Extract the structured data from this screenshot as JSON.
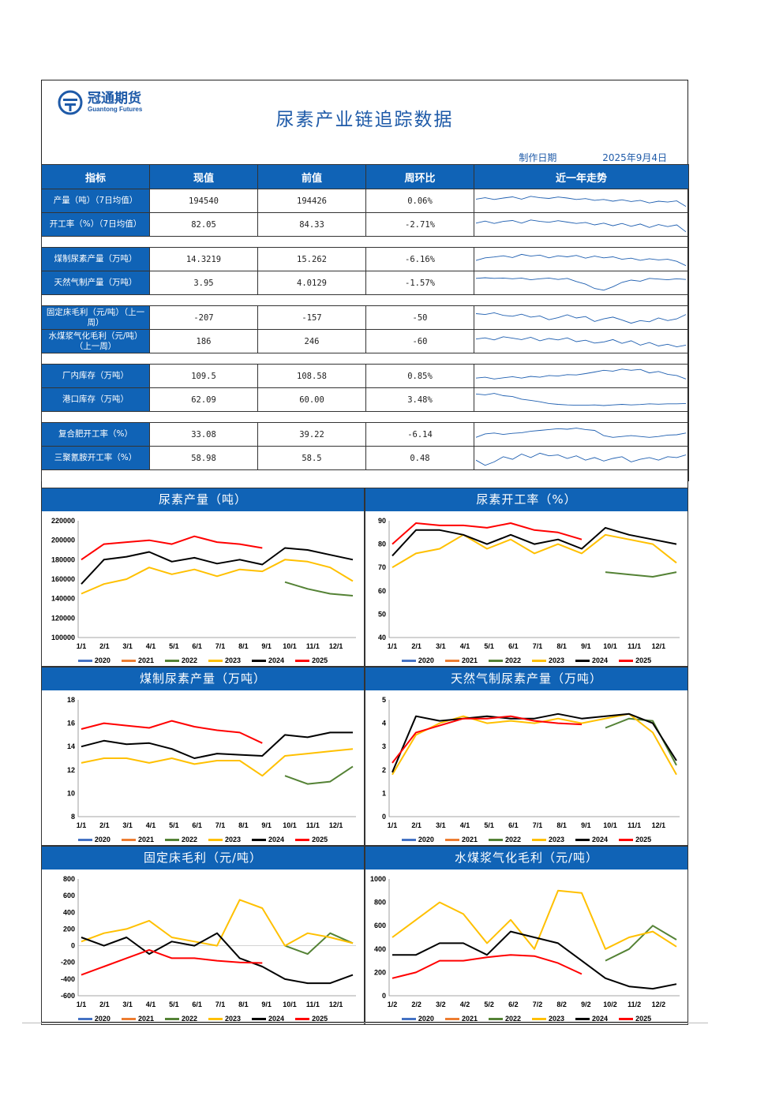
{
  "company": {
    "name_cn": "冠通期货",
    "name_en": "Guantong Futures"
  },
  "title": "尿素产业链追踪数据",
  "date_label": "制作日期",
  "date_value": "2025年9月4日",
  "table": {
    "headers": [
      "指标",
      "现值",
      "前值",
      "周环比",
      "近一年走势"
    ],
    "groups": [
      [
        {
          "label": "产量（吨）（7日均值）",
          "current": "194540",
          "previous": "194426",
          "wow": "0.06%",
          "trend": [
            0.62,
            0.7,
            0.6,
            0.68,
            0.75,
            0.62,
            0.78,
            0.7,
            0.66,
            0.74,
            0.68,
            0.6,
            0.65,
            0.55,
            0.6,
            0.5,
            0.58,
            0.48,
            0.55,
            0.4,
            0.5,
            0.45,
            0.52,
            0.2
          ]
        },
        {
          "label": "开工率（%）（7日均值）",
          "current": "82.05",
          "previous": "84.33",
          "wow": "-2.71%",
          "trend": [
            0.6,
            0.72,
            0.58,
            0.7,
            0.75,
            0.6,
            0.78,
            0.7,
            0.65,
            0.74,
            0.66,
            0.58,
            0.64,
            0.5,
            0.6,
            0.45,
            0.58,
            0.42,
            0.55,
            0.35,
            0.52,
            0.4,
            0.5,
            0.1
          ]
        }
      ],
      [
        {
          "label": "煤制尿素产量（万吨）",
          "current": "14.3219",
          "previous": "15.262",
          "wow": "-6.16%",
          "trend": [
            0.45,
            0.6,
            0.65,
            0.72,
            0.62,
            0.8,
            0.7,
            0.76,
            0.6,
            0.72,
            0.66,
            0.74,
            0.58,
            0.7,
            0.6,
            0.66,
            0.52,
            0.58,
            0.46,
            0.55,
            0.48,
            0.52,
            0.4,
            0.15
          ]
        },
        {
          "label": "天然气制产量（万吨）",
          "current": "3.95",
          "previous": "4.0129",
          "wow": "-1.57%",
          "trend": [
            0.78,
            0.82,
            0.78,
            0.8,
            0.76,
            0.8,
            0.7,
            0.76,
            0.8,
            0.72,
            0.78,
            0.6,
            0.45,
            0.2,
            0.1,
            0.3,
            0.55,
            0.68,
            0.62,
            0.78,
            0.74,
            0.7,
            0.76,
            0.72
          ]
        }
      ],
      [
        {
          "label": "固定床毛利（元/吨）（上一周）",
          "current": "-207",
          "previous": "-157",
          "wow": "-50",
          "trend": [
            0.75,
            0.7,
            0.8,
            0.65,
            0.6,
            0.72,
            0.55,
            0.62,
            0.4,
            0.52,
            0.68,
            0.5,
            0.58,
            0.3,
            0.45,
            0.55,
            0.38,
            0.2,
            0.35,
            0.28,
            0.5,
            0.35,
            0.45,
            0.7
          ]
        },
        {
          "label": "水煤浆气化毛利（元/吨）（上一周）",
          "current": "186",
          "previous": "246",
          "wow": "-60",
          "trend": [
            0.65,
            0.72,
            0.6,
            0.78,
            0.7,
            0.62,
            0.75,
            0.55,
            0.68,
            0.6,
            0.72,
            0.5,
            0.58,
            0.42,
            0.48,
            0.62,
            0.4,
            0.55,
            0.3,
            0.45,
            0.25,
            0.35,
            0.2,
            0.3
          ]
        }
      ],
      [
        {
          "label": "厂内库存（万吨）",
          "current": "109.5",
          "previous": "108.58",
          "wow": "0.85%",
          "trend": [
            0.4,
            0.45,
            0.35,
            0.42,
            0.48,
            0.4,
            0.5,
            0.45,
            0.55,
            0.52,
            0.6,
            0.58,
            0.66,
            0.75,
            0.85,
            0.8,
            0.92,
            0.85,
            0.9,
            0.7,
            0.78,
            0.62,
            0.55,
            0.35
          ]
        },
        {
          "label": "港口库存（万吨）",
          "current": "62.09",
          "previous": "60.00",
          "wow": "3.48%",
          "trend": [
            0.85,
            0.8,
            0.88,
            0.75,
            0.7,
            0.55,
            0.48,
            0.4,
            0.3,
            0.25,
            0.22,
            0.2,
            0.2,
            0.22,
            0.18,
            0.22,
            0.25,
            0.22,
            0.24,
            0.28,
            0.26,
            0.28,
            0.28,
            0.3
          ]
        }
      ],
      [
        {
          "label": "复合肥开工率（%）",
          "current": "33.08",
          "previous": "39.22",
          "wow": "-6.14",
          "trend": [
            0.35,
            0.55,
            0.6,
            0.52,
            0.58,
            0.62,
            0.7,
            0.75,
            0.8,
            0.85,
            0.82,
            0.88,
            0.8,
            0.75,
            0.45,
            0.35,
            0.4,
            0.45,
            0.4,
            0.35,
            0.4,
            0.48,
            0.5,
            0.6
          ]
        },
        {
          "label": "三聚氰胺开工率（%）",
          "current": "58.98",
          "previous": "58.5",
          "wow": "0.48",
          "trend": [
            0.4,
            0.1,
            0.3,
            0.6,
            0.45,
            0.75,
            0.55,
            0.8,
            0.65,
            0.7,
            0.5,
            0.65,
            0.4,
            0.55,
            0.35,
            0.5,
            0.6,
            0.3,
            0.45,
            0.55,
            0.4,
            0.6,
            0.55,
            0.7
          ]
        }
      ]
    ]
  },
  "legend_years": [
    "2020",
    "2021",
    "2022",
    "2023",
    "2024",
    "2025"
  ],
  "series_colors": {
    "2020": "#4472c4",
    "2021": "#ed7d31",
    "2022": "#548235",
    "2023": "#ffc000",
    "2024": "#000000",
    "2025": "#ff0000"
  },
  "chart_data": [
    {
      "type": "line",
      "title": "尿素产量（吨）",
      "x_ticks": [
        "1/1",
        "2/1",
        "3/1",
        "4/1",
        "5/1",
        "6/1",
        "7/1",
        "8/1",
        "9/1",
        "10/1",
        "11/1",
        "12/1"
      ],
      "ylim": [
        100000,
        220000
      ],
      "y_ticks": [
        100000,
        120000,
        140000,
        160000,
        180000,
        200000,
        220000
      ],
      "series": [
        {
          "name": "2022",
          "values": [
            null,
            null,
            null,
            null,
            null,
            null,
            null,
            null,
            null,
            157000,
            150000,
            145000,
            143000
          ]
        },
        {
          "name": "2023",
          "values": [
            145000,
            155000,
            160000,
            172000,
            165000,
            170000,
            163000,
            170000,
            168000,
            180000,
            178000,
            172000,
            158000
          ]
        },
        {
          "name": "2024",
          "values": [
            155000,
            180000,
            183000,
            188000,
            178000,
            182000,
            176000,
            180000,
            175000,
            192000,
            190000,
            185000,
            180000
          ]
        },
        {
          "name": "2025",
          "values": [
            180000,
            196000,
            198000,
            200000,
            196000,
            204000,
            198000,
            196000,
            192000,
            null,
            null,
            null,
            null
          ]
        }
      ]
    },
    {
      "type": "line",
      "title": "尿素开工率（%）",
      "x_ticks": [
        "1/1",
        "2/1",
        "3/1",
        "4/1",
        "5/1",
        "6/1",
        "7/1",
        "8/1",
        "9/1",
        "10/1",
        "11/1",
        "12/1"
      ],
      "ylim": [
        40,
        90
      ],
      "y_ticks": [
        40,
        50,
        60,
        70,
        80,
        90
      ],
      "series": [
        {
          "name": "2022",
          "values": [
            null,
            null,
            null,
            null,
            null,
            null,
            null,
            null,
            null,
            68,
            67,
            66,
            68
          ]
        },
        {
          "name": "2023",
          "values": [
            70,
            76,
            78,
            84,
            78,
            82,
            76,
            80,
            76,
            84,
            82,
            80,
            72
          ]
        },
        {
          "name": "2024",
          "values": [
            75,
            86,
            86,
            84,
            80,
            84,
            80,
            82,
            78,
            87,
            84,
            82,
            80
          ]
        },
        {
          "name": "2025",
          "values": [
            80,
            89,
            88,
            88,
            87,
            89,
            86,
            85,
            82,
            null,
            null,
            null,
            null
          ]
        }
      ]
    },
    {
      "type": "line",
      "title": "煤制尿素产量（万吨）",
      "x_ticks": [
        "1/1",
        "2/1",
        "3/1",
        "4/1",
        "5/1",
        "6/1",
        "7/1",
        "8/1",
        "9/1",
        "10/1",
        "11/1",
        "12/1"
      ],
      "ylim": [
        8,
        18
      ],
      "y_ticks": [
        8,
        10,
        12,
        14,
        16,
        18
      ],
      "series": [
        {
          "name": "2022",
          "values": [
            null,
            null,
            null,
            null,
            null,
            null,
            null,
            null,
            null,
            11.5,
            10.8,
            11.0,
            12.3
          ]
        },
        {
          "name": "2023",
          "values": [
            12.6,
            13.0,
            13.0,
            12.6,
            13.0,
            12.5,
            12.8,
            12.8,
            11.5,
            13.2,
            13.4,
            13.6,
            13.8
          ]
        },
        {
          "name": "2024",
          "values": [
            14.0,
            14.5,
            14.2,
            14.3,
            13.8,
            13.0,
            13.4,
            13.3,
            13.2,
            15.0,
            14.8,
            15.2,
            15.2
          ]
        },
        {
          "name": "2025",
          "values": [
            15.5,
            16.0,
            15.8,
            15.6,
            16.2,
            15.7,
            15.4,
            15.2,
            14.3,
            null,
            null,
            null,
            null
          ]
        }
      ]
    },
    {
      "type": "line",
      "title": "天然气制尿素产量（万吨）",
      "x_ticks": [
        "1/1",
        "2/1",
        "3/1",
        "4/1",
        "5/1",
        "6/1",
        "7/1",
        "8/1",
        "9/1",
        "10/1",
        "11/1",
        "12/1"
      ],
      "ylim": [
        0,
        5
      ],
      "y_ticks": [
        0,
        1,
        2,
        3,
        4,
        5
      ],
      "series": [
        {
          "name": "2022",
          "values": [
            null,
            null,
            null,
            null,
            null,
            null,
            null,
            null,
            null,
            3.8,
            4.2,
            4.1,
            2.2
          ]
        },
        {
          "name": "2023",
          "values": [
            1.8,
            3.5,
            4.0,
            4.3,
            4.0,
            4.1,
            4.0,
            4.2,
            4.0,
            4.2,
            4.4,
            3.6,
            1.8
          ]
        },
        {
          "name": "2024",
          "values": [
            1.9,
            4.3,
            4.1,
            4.2,
            4.3,
            4.2,
            4.2,
            4.4,
            4.2,
            4.3,
            4.4,
            4.0,
            2.4
          ]
        },
        {
          "name": "2025",
          "values": [
            2.3,
            3.6,
            3.9,
            4.2,
            4.2,
            4.3,
            4.1,
            4.0,
            3.95,
            null,
            null,
            null,
            null
          ]
        }
      ]
    },
    {
      "type": "line",
      "title": "固定床毛利（元/吨）",
      "x_ticks": [
        "1/1",
        "2/1",
        "3/1",
        "4/1",
        "5/1",
        "6/1",
        "7/1",
        "8/1",
        "9/1",
        "10/1",
        "11/1",
        "12/1"
      ],
      "ylim": [
        -600,
        800
      ],
      "y_ticks": [
        -600,
        -400,
        -200,
        0,
        200,
        400,
        600,
        800
      ],
      "series": [
        {
          "name": "2022",
          "values": [
            null,
            null,
            null,
            null,
            null,
            null,
            null,
            null,
            null,
            0,
            -100,
            150,
            30
          ]
        },
        {
          "name": "2023",
          "values": [
            50,
            150,
            200,
            300,
            100,
            50,
            0,
            550,
            450,
            0,
            150,
            100,
            30
          ]
        },
        {
          "name": "2024",
          "values": [
            100,
            0,
            100,
            -100,
            50,
            0,
            150,
            -150,
            -250,
            -400,
            -450,
            -450,
            -350
          ]
        },
        {
          "name": "2025",
          "values": [
            -350,
            -250,
            -150,
            -50,
            -150,
            -150,
            -180,
            -200,
            -207,
            null,
            null,
            null,
            null
          ]
        }
      ]
    },
    {
      "type": "line",
      "title": "水煤浆气化毛利（元/吨）",
      "x_ticks": [
        "1/2",
        "2/2",
        "3/2",
        "4/2",
        "5/2",
        "6/2",
        "7/2",
        "8/2",
        "9/2",
        "10/2",
        "11/2",
        "12/2"
      ],
      "ylim": [
        0,
        1000
      ],
      "y_ticks": [
        0,
        200,
        400,
        600,
        800,
        1000
      ],
      "series": [
        {
          "name": "2022",
          "values": [
            null,
            null,
            null,
            null,
            null,
            null,
            null,
            null,
            null,
            300,
            400,
            600,
            480
          ]
        },
        {
          "name": "2023",
          "values": [
            500,
            650,
            800,
            700,
            450,
            650,
            400,
            900,
            880,
            400,
            500,
            550,
            420
          ]
        },
        {
          "name": "2024",
          "values": [
            350,
            350,
            450,
            450,
            350,
            550,
            500,
            450,
            300,
            150,
            80,
            60,
            100
          ]
        },
        {
          "name": "2025",
          "values": [
            150,
            200,
            300,
            300,
            330,
            350,
            340,
            280,
            186,
            null,
            null,
            null,
            null
          ]
        }
      ]
    }
  ]
}
